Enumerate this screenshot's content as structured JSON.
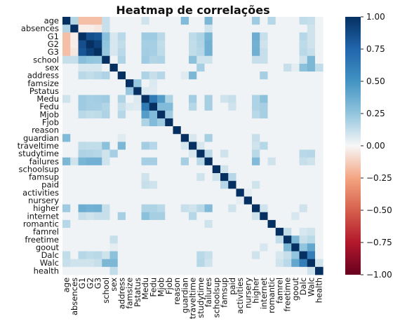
{
  "chart_data": {
    "type": "heatmap",
    "title": "Heatmap de correlações",
    "xlabel": "",
    "ylabel": "",
    "variables": [
      "age",
      "absences",
      "G1",
      "G2",
      "G3",
      "school",
      "sex",
      "address",
      "famsize",
      "Pstatus",
      "Medu",
      "Fedu",
      "Mjob",
      "Fjob",
      "reason",
      "guardian",
      "traveltime",
      "studytime",
      "failures",
      "schoolsup",
      "famsup",
      "paid",
      "activities",
      "nursery",
      "higher",
      "internet",
      "romantic",
      "famrel",
      "freetime",
      "goout",
      "Dalc",
      "Walc",
      "health"
    ],
    "color_range": [
      -1,
      1
    ],
    "colorbar_ticks": [
      "1.00",
      "0.75",
      "0.50",
      "0.25",
      "0.00",
      "−0.25",
      "−0.50",
      "−0.75",
      "−1.00"
    ],
    "colors": {
      "negative_end": "#67001f",
      "neutral": "#f7f7f7",
      "positive_end": "#053061"
    },
    "default_value": 0.02,
    "correlations": [
      [
        "age",
        "absences",
        0.17
      ],
      [
        "age",
        "G1",
        -0.17
      ],
      [
        "age",
        "G2",
        -0.17
      ],
      [
        "age",
        "G3",
        -0.17
      ],
      [
        "age",
        "school",
        0.12
      ],
      [
        "age",
        "guardian",
        0.3
      ],
      [
        "age",
        "failures",
        0.32
      ],
      [
        "age",
        "higher",
        0.22
      ],
      [
        "age",
        "romantic",
        0.16
      ],
      [
        "age",
        "Dalc",
        0.13
      ],
      [
        "age",
        "Walc",
        0.12
      ],
      [
        "age",
        "Medu",
        0.1
      ],
      [
        "absences",
        "G1",
        -0.03
      ],
      [
        "absences",
        "G2",
        -0.03
      ],
      [
        "absences",
        "G3",
        -0.05
      ],
      [
        "absences",
        "school",
        0.12
      ],
      [
        "absences",
        "Walc",
        0.1
      ],
      [
        "absences",
        "failures",
        0.1
      ],
      [
        "G1",
        "G2",
        0.86
      ],
      [
        "G1",
        "G3",
        0.83
      ],
      [
        "G2",
        "G3",
        0.92
      ],
      [
        "G1",
        "school",
        0.28
      ],
      [
        "G2",
        "school",
        0.25
      ],
      [
        "G3",
        "school",
        0.24
      ],
      [
        "G1",
        "sex",
        0.08
      ],
      [
        "G2",
        "sex",
        0.08
      ],
      [
        "G3",
        "sex",
        0.08
      ],
      [
        "G1",
        "address",
        0.15
      ],
      [
        "G2",
        "address",
        0.13
      ],
      [
        "G3",
        "address",
        0.15
      ],
      [
        "G1",
        "Medu",
        0.22
      ],
      [
        "G2",
        "Medu",
        0.2
      ],
      [
        "G3",
        "Medu",
        0.21
      ],
      [
        "G1",
        "Fedu",
        0.22
      ],
      [
        "G2",
        "Fedu",
        0.2
      ],
      [
        "G3",
        "Fedu",
        0.2
      ],
      [
        "G1",
        "Mjob",
        0.15
      ],
      [
        "G2",
        "Mjob",
        0.13
      ],
      [
        "G3",
        "Mjob",
        0.14
      ],
      [
        "G1",
        "failures",
        0.33
      ],
      [
        "G2",
        "failures",
        0.35
      ],
      [
        "G3",
        "failures",
        0.35
      ],
      [
        "G1",
        "higher",
        0.37
      ],
      [
        "G2",
        "higher",
        0.35
      ],
      [
        "G3",
        "higher",
        0.36
      ],
      [
        "G1",
        "internet",
        0.12
      ],
      [
        "G2",
        "internet",
        0.1
      ],
      [
        "G3",
        "internet",
        0.12
      ],
      [
        "G1",
        "studytime",
        0.18
      ],
      [
        "G2",
        "studytime",
        0.17
      ],
      [
        "G3",
        "studytime",
        0.16
      ],
      [
        "G1",
        "traveltime",
        0.14
      ],
      [
        "G2",
        "traveltime",
        0.13
      ],
      [
        "G3",
        "traveltime",
        0.13
      ],
      [
        "G1",
        "Dalc",
        0.16
      ],
      [
        "G2",
        "Dalc",
        0.14
      ],
      [
        "G3",
        "Dalc",
        0.15
      ],
      [
        "G1",
        "Walc",
        0.1
      ],
      [
        "G2",
        "Walc",
        0.1
      ],
      [
        "G3",
        "Walc",
        0.12
      ],
      [
        "school",
        "address",
        0.18
      ],
      [
        "school",
        "traveltime",
        0.27
      ],
      [
        "school",
        "Medu",
        0.22
      ],
      [
        "school",
        "Fedu",
        0.17
      ],
      [
        "school",
        "Mjob",
        0.18
      ],
      [
        "school",
        "higher",
        0.12
      ],
      [
        "school",
        "internet",
        0.12
      ],
      [
        "school",
        "failures",
        0.1
      ],
      [
        "school",
        "Walc",
        0.32
      ],
      [
        "school",
        "Dalc",
        0.1
      ],
      [
        "school",
        "studytime",
        0.1
      ],
      [
        "sex",
        "studytime",
        0.2
      ],
      [
        "sex",
        "Dalc",
        0.27
      ],
      [
        "sex",
        "Walc",
        0.32
      ],
      [
        "sex",
        "goout",
        0.05
      ],
      [
        "sex",
        "freetime",
        0.12
      ],
      [
        "sex",
        "health",
        0.13
      ],
      [
        "address",
        "traveltime",
        0.32
      ],
      [
        "address",
        "internet",
        0.2
      ],
      [
        "address",
        "Medu",
        0.18
      ],
      [
        "address",
        "Fedu",
        0.12
      ],
      [
        "address",
        "Mjob",
        0.16
      ],
      [
        "address",
        "guardian",
        0.06
      ],
      [
        "famsize",
        "Pstatus",
        0.24
      ],
      [
        "famsize",
        "Fedu",
        0.07
      ],
      [
        "Pstatus",
        "Medu",
        0.07
      ],
      [
        "Pstatus",
        "Fedu",
        0.06
      ],
      [
        "Medu",
        "Fedu",
        0.64
      ],
      [
        "Medu",
        "Mjob",
        0.45
      ],
      [
        "Fedu",
        "Mjob",
        0.3
      ],
      [
        "Medu",
        "Fjob",
        0.18
      ],
      [
        "Fedu",
        "Fjob",
        0.3
      ],
      [
        "Mjob",
        "Fjob",
        0.22
      ],
      [
        "Medu",
        "internet",
        0.27
      ],
      [
        "Fedu",
        "internet",
        0.2
      ],
      [
        "Mjob",
        "internet",
        0.2
      ],
      [
        "Medu",
        "higher",
        0.18
      ],
      [
        "Fedu",
        "higher",
        0.18
      ],
      [
        "Mjob",
        "higher",
        0.15
      ],
      [
        "Medu",
        "traveltime",
        0.21
      ],
      [
        "Fedu",
        "traveltime",
        0.16
      ],
      [
        "Medu",
        "failures",
        0.2
      ],
      [
        "Fedu",
        "failures",
        0.2
      ],
      [
        "Medu",
        "paid",
        0.12
      ],
      [
        "Fedu",
        "paid",
        0.1
      ],
      [
        "Medu",
        "famsup",
        0.1
      ],
      [
        "guardian",
        "traveltime",
        0.08
      ],
      [
        "guardian",
        "failures",
        0.2
      ],
      [
        "guardian",
        "higher",
        0.12
      ],
      [
        "traveltime",
        "studytime",
        0.08
      ],
      [
        "traveltime",
        "higher",
        0.1
      ],
      [
        "traveltime",
        "internet",
        0.16
      ],
      [
        "studytime",
        "failures",
        0.15
      ],
      [
        "studytime",
        "higher",
        0.15
      ],
      [
        "studytime",
        "Dalc",
        0.15
      ],
      [
        "studytime",
        "Walc",
        0.16
      ],
      [
        "studytime",
        "famsup",
        0.1
      ],
      [
        "failures",
        "higher",
        0.3
      ],
      [
        "failures",
        "Dalc",
        0.12
      ],
      [
        "failures",
        "Walc",
        0.1
      ],
      [
        "schoolsup",
        "famsup",
        0.1
      ],
      [
        "famsup",
        "paid",
        0.16
      ],
      [
        "paid",
        "higher",
        0.1
      ],
      [
        "activities",
        "nursery",
        0.05
      ],
      [
        "higher",
        "internet",
        0.1
      ],
      [
        "higher",
        "Dalc",
        0.1
      ],
      [
        "internet",
        "goout",
        0.08
      ],
      [
        "romantic",
        "failures",
        0.1
      ],
      [
        "famrel",
        "freetime",
        0.13
      ],
      [
        "famrel",
        "Dalc",
        0.08
      ],
      [
        "famrel",
        "Walc",
        0.1
      ],
      [
        "freetime",
        "goout",
        0.32
      ],
      [
        "freetime",
        "Walc",
        0.15
      ],
      [
        "freetime",
        "Dalc",
        0.12
      ],
      [
        "goout",
        "Dalc",
        0.25
      ],
      [
        "goout",
        "Walc",
        0.4
      ],
      [
        "Dalc",
        "Walc",
        0.62
      ],
      [
        "Walc",
        "health",
        0.1
      ]
    ]
  }
}
